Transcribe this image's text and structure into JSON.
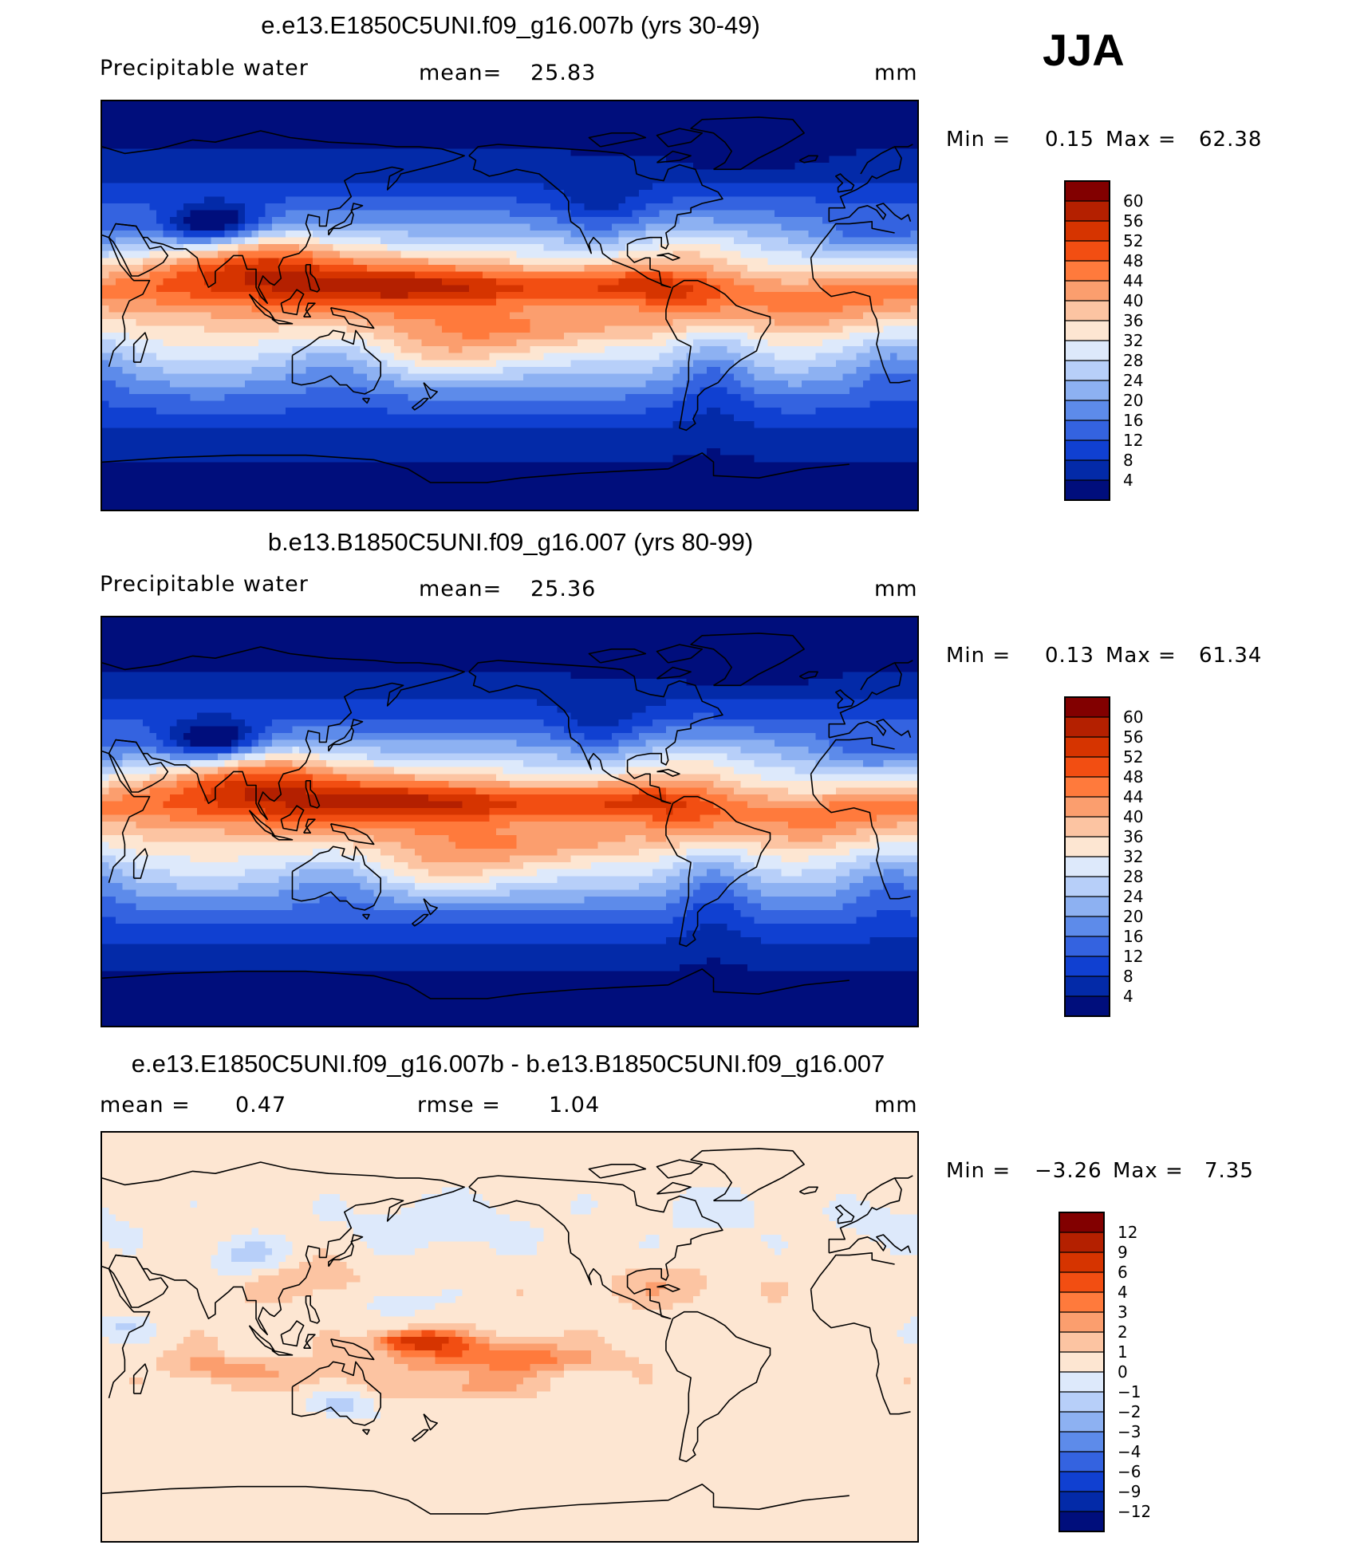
{
  "season": "JJA",
  "panels": [
    {
      "title": "e.e13.E1850C5UNI.f09_g16.007b (yrs 30-49)",
      "variable": "Precipitable water",
      "stat1_label": "mean=",
      "stat1_value": "25.83",
      "stat2_label": "",
      "stat2_value": "",
      "units": "mm",
      "min_label": "Min =",
      "min_value": "0.15",
      "max_label": "Max =",
      "max_value": "62.38",
      "colorbar": {
        "labels": [
          "60",
          "56",
          "52",
          "48",
          "44",
          "40",
          "36",
          "32",
          "28",
          "24",
          "20",
          "16",
          "12",
          "8",
          "4"
        ],
        "colors": [
          "#820000",
          "#b42000",
          "#d63400",
          "#f24e12",
          "#ff7a3c",
          "#fb9e6e",
          "#fcc4a2",
          "#fde6d2",
          "#dde9fb",
          "#b7cff9",
          "#8db1f2",
          "#5d8bea",
          "#3463e0",
          "#1040d1",
          "#032aa8",
          "#000e7c"
        ]
      },
      "field": "abs"
    },
    {
      "title": "b.e13.B1850C5UNI.f09_g16.007 (yrs 80-99)",
      "variable": "Precipitable water",
      "stat1_label": "mean=",
      "stat1_value": "25.36",
      "stat2_label": "",
      "stat2_value": "",
      "units": "mm",
      "min_label": "Min =",
      "min_value": "0.13",
      "max_label": "Max =",
      "max_value": "61.34",
      "colorbar": {
        "labels": [
          "60",
          "56",
          "52",
          "48",
          "44",
          "40",
          "36",
          "32",
          "28",
          "24",
          "20",
          "16",
          "12",
          "8",
          "4"
        ],
        "colors": [
          "#820000",
          "#b42000",
          "#d63400",
          "#f24e12",
          "#ff7a3c",
          "#fb9e6e",
          "#fcc4a2",
          "#fde6d2",
          "#dde9fb",
          "#b7cff9",
          "#8db1f2",
          "#5d8bea",
          "#3463e0",
          "#1040d1",
          "#032aa8",
          "#000e7c"
        ]
      },
      "field": "abs"
    },
    {
      "title": "e.e13.E1850C5UNI.f09_g16.007b - b.e13.B1850C5UNI.f09_g16.007",
      "variable": "",
      "stat1_label": "mean =",
      "stat1_value": "0.47",
      "stat2_label": "rmse =",
      "stat2_value": "1.04",
      "units": "mm",
      "min_label": "Min =",
      "min_value": "−3.26",
      "max_label": "Max =",
      "max_value": "7.35",
      "colorbar": {
        "labels": [
          "12",
          "9",
          "6",
          "4",
          "3",
          "2",
          "1",
          "0",
          "−1",
          "−2",
          "−3",
          "−4",
          "−6",
          "−9",
          "−12"
        ],
        "colors": [
          "#820000",
          "#b42000",
          "#d63400",
          "#f24e12",
          "#ff7a3c",
          "#fb9e6e",
          "#fcc4a2",
          "#fde6d2",
          "#dde9fb",
          "#b7cff9",
          "#8db1f2",
          "#5d8bea",
          "#3463e0",
          "#1040d1",
          "#032aa8",
          "#000e7c"
        ]
      },
      "field": "diff"
    }
  ]
}
